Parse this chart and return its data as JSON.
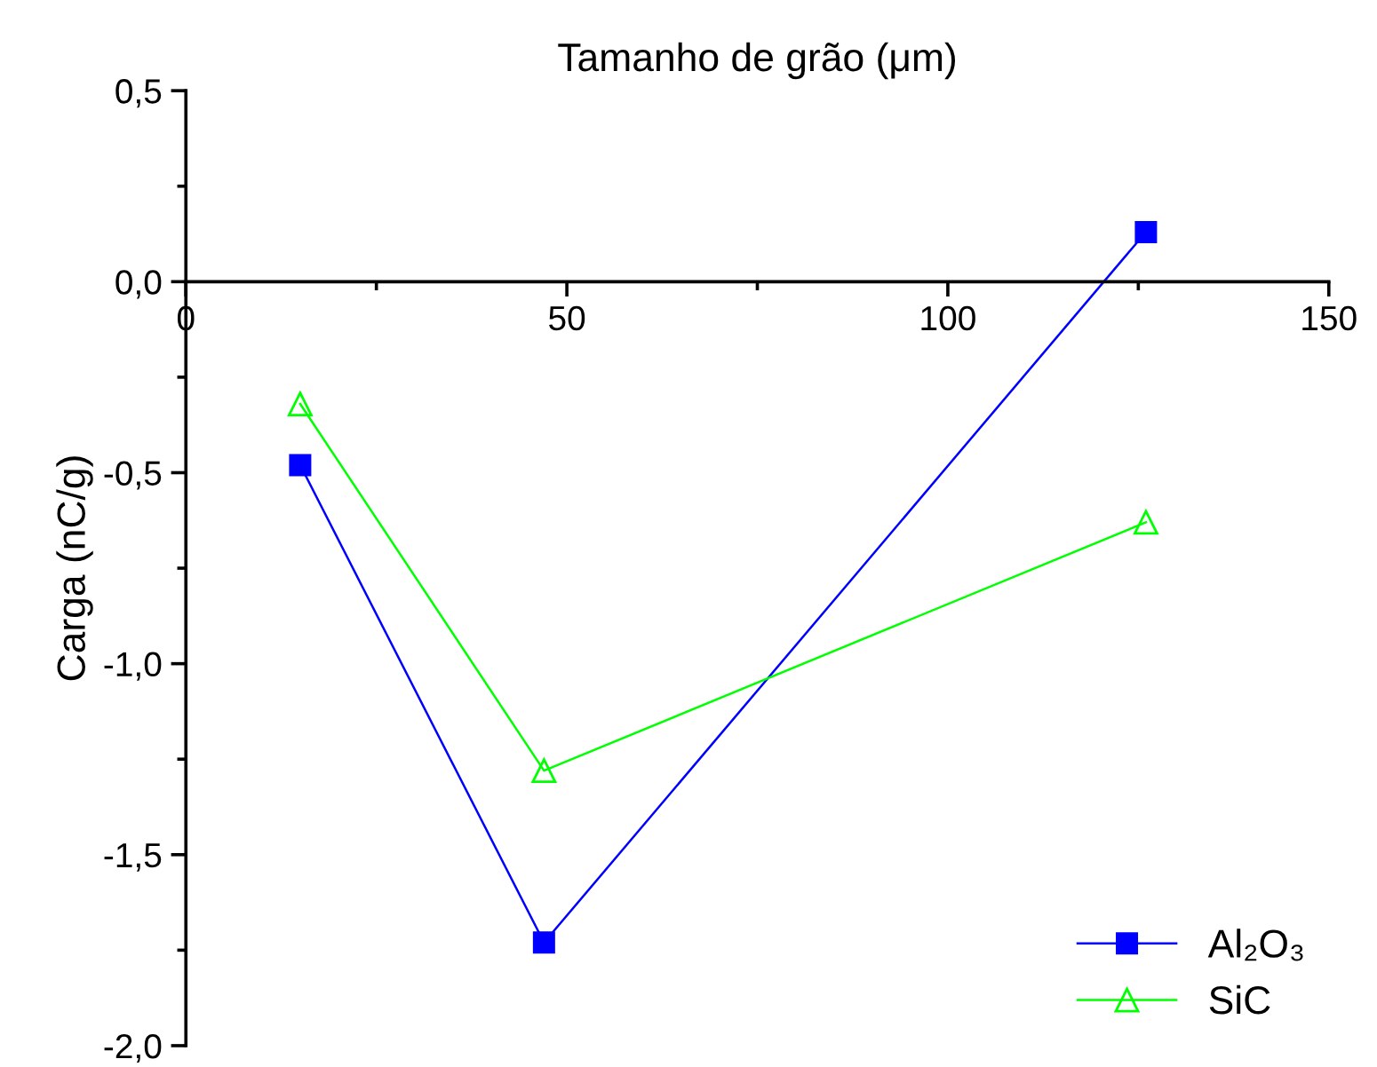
{
  "chart_data": {
    "type": "line",
    "xlabel": "Tamanho de grão (μm)",
    "ylabel": "Carga (nC/g)",
    "xlim": [
      0,
      150
    ],
    "xticks": [
      0,
      50,
      100,
      150
    ],
    "ylim": [
      -2.0,
      0.5
    ],
    "yticks": [
      {
        "value": -2.0,
        "label": "-2,0"
      },
      {
        "value": -1.5,
        "label": "-1,5"
      },
      {
        "value": -1.0,
        "label": "-1,0"
      },
      {
        "value": -0.5,
        "label": "-0,5"
      },
      {
        "value": 0.0,
        "label": "0,0"
      },
      {
        "value": 0.5,
        "label": "0,5"
      }
    ],
    "legend": "bottom right",
    "grid": false,
    "series": [
      {
        "name": "Al₂O₃",
        "color": "#0000ff",
        "marker": "square",
        "x": [
          15,
          47,
          126
        ],
        "values": [
          -0.48,
          -1.73,
          0.13
        ]
      },
      {
        "name": "SiC",
        "color": "#00ff00",
        "marker": "triangle",
        "x": [
          15,
          47,
          126
        ],
        "values": [
          -0.32,
          -1.28,
          -0.63
        ]
      }
    ]
  }
}
